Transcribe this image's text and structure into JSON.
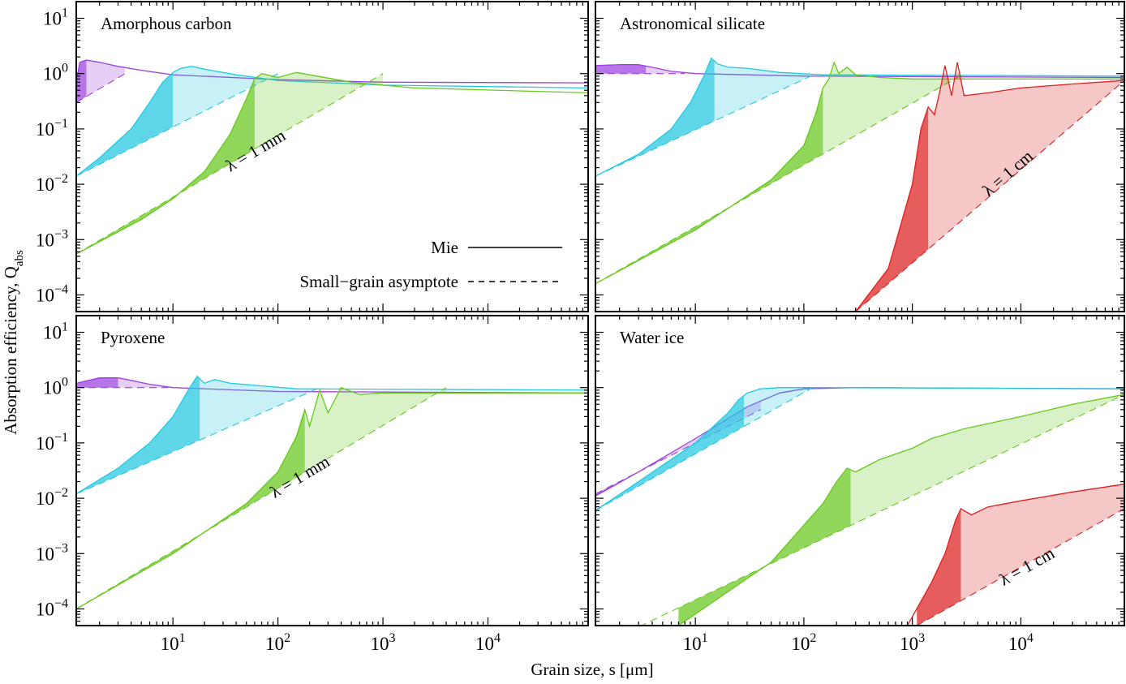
{
  "chart_data": {
    "type": "line",
    "xlabel": "Grain size, s [μm]",
    "ylabel": "Absorption efficiency, Q_abs",
    "xscale": "log",
    "yscale": "log",
    "xlim": [
      1.2,
      90000
    ],
    "ylim": [
      5e-05,
      20
    ],
    "x_ticks": [
      {
        "value": 10,
        "label": "10",
        "exp": "1"
      },
      {
        "value": 100,
        "label": "10",
        "exp": "2"
      },
      {
        "value": 1000,
        "label": "10",
        "exp": "3"
      },
      {
        "value": 10000,
        "label": "10",
        "exp": "4"
      }
    ],
    "y_ticks": [
      {
        "value": 0.0001,
        "label": "10",
        "exp": "−4"
      },
      {
        "value": 0.001,
        "label": "10",
        "exp": "−3"
      },
      {
        "value": 0.01,
        "label": "10",
        "exp": "−2"
      },
      {
        "value": 0.1,
        "label": "10",
        "exp": "−1"
      },
      {
        "value": 1,
        "label": "10",
        "exp": "0"
      },
      {
        "value": 10,
        "label": "10",
        "exp": "1"
      }
    ],
    "legend": {
      "placement": "lower-right of top-left panel",
      "entries": [
        {
          "label": "Mie",
          "style": "solid"
        },
        {
          "label": "Small−grain asymptote",
          "style": "dashed"
        }
      ]
    },
    "colors": {
      "purple": "#9b40e0",
      "cyan": "#22c8e0",
      "green": "#66c81c",
      "red": "#dc1e1e"
    },
    "panels": [
      {
        "title": "Amorphous carbon",
        "wavelength_label": "λ = 1 mm",
        "series": [
          {
            "color": "purple",
            "split": 1.5,
            "asym_x": [
              1.2,
              3.5
            ],
            "asym_y": [
              0.3,
              1.0
            ],
            "mie": [
              [
                1.2,
                0.26
              ],
              [
                1.22,
                0.85
              ],
              [
                1.3,
                1.6
              ],
              [
                1.5,
                1.75
              ],
              [
                2,
                1.6
              ],
              [
                3,
                1.35
              ],
              [
                5,
                1.15
              ],
              [
                10,
                0.95
              ],
              [
                100,
                0.78
              ],
              [
                1000,
                0.7
              ],
              [
                90000,
                0.68
              ]
            ]
          },
          {
            "color": "cyan",
            "split": 10,
            "asym_x": [
              1.2,
              100
            ],
            "asym_y": [
              0.014,
              1.0
            ],
            "mie": [
              [
                1.2,
                0.014
              ],
              [
                2,
                0.03
              ],
              [
                4,
                0.1
              ],
              [
                6,
                0.3
              ],
              [
                8,
                0.7
              ],
              [
                10,
                1.05
              ],
              [
                12,
                1.25
              ],
              [
                15,
                1.35
              ],
              [
                20,
                1.2
              ],
              [
                40,
                0.95
              ],
              [
                100,
                0.75
              ],
              [
                1000,
                0.62
              ],
              [
                90000,
                0.55
              ]
            ]
          },
          {
            "color": "green",
            "split": 60,
            "asym_x": [
              1.2,
              1000
            ],
            "asym_y": [
              0.00055,
              1.0
            ],
            "mie": [
              [
                1.2,
                0.00055
              ],
              [
                5,
                0.0023
              ],
              [
                10,
                0.0055
              ],
              [
                20,
                0.017
              ],
              [
                35,
                0.08
              ],
              [
                50,
                0.35
              ],
              [
                60,
                0.8
              ],
              [
                70,
                1.0
              ],
              [
                100,
                0.85
              ],
              [
                150,
                1.05
              ],
              [
                200,
                0.95
              ],
              [
                500,
                0.7
              ],
              [
                2000,
                0.55
              ],
              [
                90000,
                0.45
              ]
            ]
          }
        ]
      },
      {
        "title": "Astronomical silicate",
        "wavelength_label": "λ = 1 cm",
        "series": [
          {
            "color": "purple",
            "split": 3.5,
            "asym_x": [
              1.2,
              8
            ],
            "asym_y": [
              1.0,
              1.0
            ],
            "mie": [
              [
                1.2,
                1.4
              ],
              [
                2,
                1.45
              ],
              [
                3,
                1.45
              ],
              [
                4,
                1.3
              ],
              [
                6,
                1.1
              ],
              [
                10,
                1.0
              ],
              [
                100,
                0.9
              ],
              [
                90000,
                0.85
              ]
            ]
          },
          {
            "color": "cyan",
            "split": 15,
            "asym_x": [
              1.2,
              130
            ],
            "asym_y": [
              0.014,
              1.0
            ],
            "mie": [
              [
                1.2,
                0.014
              ],
              [
                3,
                0.035
              ],
              [
                6,
                0.1
              ],
              [
                9,
                0.3
              ],
              [
                12,
                0.9
              ],
              [
                14,
                1.9
              ],
              [
                16,
                1.5
              ],
              [
                20,
                1.3
              ],
              [
                30,
                1.25
              ],
              [
                60,
                1.05
              ],
              [
                150,
                0.95
              ],
              [
                90000,
                0.9
              ]
            ]
          },
          {
            "color": "green",
            "split": 150,
            "asym_x": [
              1.2,
              3000
            ],
            "asym_y": [
              0.00016,
              1.0
            ],
            "mie": [
              [
                1.2,
                0.00016
              ],
              [
                10,
                0.0015
              ],
              [
                50,
                0.012
              ],
              [
                100,
                0.05
              ],
              [
                130,
                0.2
              ],
              [
                150,
                0.55
              ],
              [
                170,
                0.8
              ],
              [
                190,
                1.6
              ],
              [
                210,
                1.0
              ],
              [
                250,
                1.3
              ],
              [
                300,
                0.95
              ],
              [
                500,
                0.85
              ],
              [
                1000,
                0.8
              ],
              [
                90000,
                0.8
              ]
            ]
          },
          {
            "color": "red",
            "split": 1400,
            "asym_x": [
              300,
              90000
            ],
            "asym_y": [
              5e-05,
              0.75
            ],
            "mie": [
              [
                300,
                5e-05
              ],
              [
                600,
                0.0003
              ],
              [
                1000,
                0.01
              ],
              [
                1200,
                0.1
              ],
              [
                1400,
                0.25
              ],
              [
                1600,
                0.18
              ],
              [
                1800,
                0.5
              ],
              [
                2000,
                1.4
              ],
              [
                2300,
                0.4
              ],
              [
                2600,
                1.6
              ],
              [
                3000,
                0.4
              ],
              [
                5000,
                0.45
              ],
              [
                10000,
                0.55
              ],
              [
                30000,
                0.65
              ],
              [
                90000,
                0.75
              ]
            ]
          }
        ]
      },
      {
        "title": "Pyroxene",
        "wavelength_label": "λ = 1 mm",
        "series": [
          {
            "color": "purple",
            "split": 3,
            "asym_x": [
              1.2,
              9
            ],
            "asym_y": [
              1.0,
              1.0
            ],
            "mie": [
              [
                1.2,
                1.2
              ],
              [
                2,
                1.5
              ],
              [
                3,
                1.5
              ],
              [
                4,
                1.35
              ],
              [
                6,
                1.15
              ],
              [
                10,
                1.0
              ],
              [
                100,
                0.85
              ],
              [
                90000,
                0.8
              ]
            ]
          },
          {
            "color": "cyan",
            "split": 18,
            "asym_x": [
              1.2,
              250
            ],
            "asym_y": [
              0.012,
              1.0
            ],
            "mie": [
              [
                1.2,
                0.012
              ],
              [
                3,
                0.035
              ],
              [
                6,
                0.1
              ],
              [
                10,
                0.3
              ],
              [
                14,
                0.9
              ],
              [
                17,
                1.6
              ],
              [
                20,
                1.2
              ],
              [
                25,
                1.4
              ],
              [
                35,
                1.2
              ],
              [
                60,
                1.1
              ],
              [
                150,
                0.95
              ],
              [
                90000,
                0.9
              ]
            ]
          },
          {
            "color": "green",
            "split": 180,
            "asym_x": [
              1.2,
              4000
            ],
            "asym_y": [
              0.0001,
              1.0
            ],
            "mie": [
              [
                1.2,
                0.0001
              ],
              [
                10,
                0.001
              ],
              [
                50,
                0.008
              ],
              [
                100,
                0.03
              ],
              [
                150,
                0.13
              ],
              [
                180,
                0.4
              ],
              [
                200,
                0.2
              ],
              [
                250,
                0.9
              ],
              [
                300,
                0.35
              ],
              [
                400,
                1.0
              ],
              [
                600,
                0.75
              ],
              [
                1000,
                0.8
              ],
              [
                90000,
                0.8
              ]
            ]
          }
        ]
      },
      {
        "title": "Water ice",
        "wavelength_label": "λ = 1 cm",
        "series": [
          {
            "color": "purple",
            "split": 5,
            "asym_x": [
              1.2,
              40
            ],
            "asym_y": [
              0.012,
              0.4
            ],
            "mie": [
              [
                1.2,
                0.011
              ],
              [
                3,
                0.03
              ],
              [
                10,
                0.12
              ],
              [
                30,
                0.45
              ],
              [
                60,
                0.8
              ],
              [
                100,
                0.95
              ],
              [
                300,
                1.0
              ],
              [
                90000,
                0.95
              ]
            ]
          },
          {
            "color": "cyan",
            "split": 28,
            "asym_x": [
              1.2,
              120
            ],
            "asym_y": [
              0.006,
              1.0
            ],
            "mie": [
              [
                1.2,
                0.006
              ],
              [
                3,
                0.02
              ],
              [
                10,
                0.1
              ],
              [
                20,
                0.35
              ],
              [
                25,
                0.6
              ],
              [
                30,
                0.8
              ],
              [
                40,
                0.95
              ],
              [
                60,
                1.0
              ],
              [
                150,
                1.0
              ],
              [
                90000,
                0.95
              ]
            ]
          },
          {
            "color": "green",
            "split": 270,
            "asym_x": [
              1.2,
              90000
            ],
            "asym_y": [
              2e-05,
              0.75
            ],
            "mie": [
              [
                7,
                5e-05
              ],
              [
                50,
                0.0007
              ],
              [
                150,
                0.008
              ],
              [
                200,
                0.02
              ],
              [
                250,
                0.035
              ],
              [
                300,
                0.03
              ],
              [
                500,
                0.05
              ],
              [
                1000,
                0.08
              ],
              [
                1500,
                0.12
              ],
              [
                3000,
                0.18
              ],
              [
                10000,
                0.3
              ],
              [
                30000,
                0.5
              ],
              [
                90000,
                0.75
              ]
            ]
          },
          {
            "color": "red",
            "split": 2800,
            "asym_x": [
              1100,
              90000
            ],
            "asym_y": [
              5e-05,
              0.0065
            ],
            "mie": [
              [
                900,
                5e-05
              ],
              [
                1500,
                0.0003
              ],
              [
                2000,
                0.001
              ],
              [
                2500,
                0.004
              ],
              [
                2800,
                0.0065
              ],
              [
                3500,
                0.005
              ],
              [
                5000,
                0.007
              ],
              [
                10000,
                0.009
              ],
              [
                30000,
                0.013
              ],
              [
                90000,
                0.018
              ]
            ]
          }
        ]
      }
    ]
  }
}
